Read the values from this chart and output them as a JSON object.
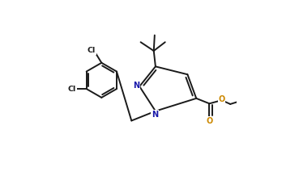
{
  "bg_color": "#ffffff",
  "bond_color": "#1a1a1a",
  "atom_colors": {
    "N": "#1919aa",
    "O": "#cc8800",
    "Cl": "#1a1a1a",
    "C": "#1a1a1a"
  },
  "lw": 1.4,
  "dbo": 0.015,
  "figsize": [
    3.69,
    2.18
  ],
  "dpi": 100
}
